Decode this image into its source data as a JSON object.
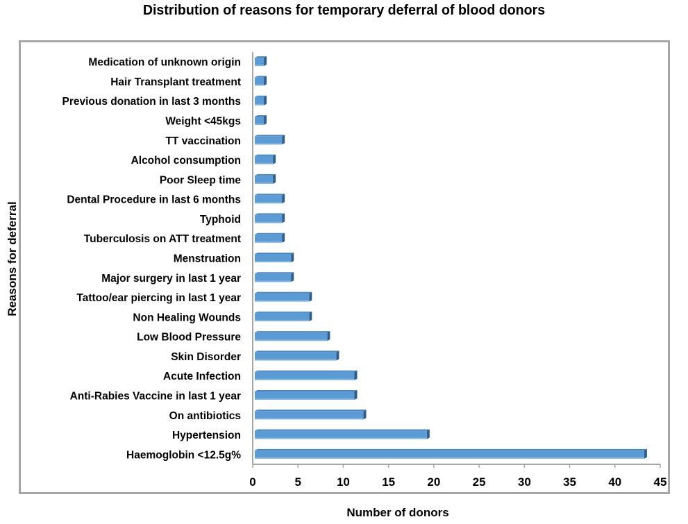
{
  "chart_data": {
    "type": "bar",
    "orientation": "horizontal",
    "title": "Distribution of reasons for temporary deferral of blood donors",
    "xlabel": "Number of donors",
    "ylabel": "Reasons for deferral",
    "xlim": [
      0,
      45
    ],
    "xticks": [
      0,
      5,
      10,
      15,
      20,
      25,
      30,
      35,
      40,
      45
    ],
    "grid": false,
    "legend": "none",
    "bar_color": "#5b9bd5",
    "categories": [
      "Medication of unknown origin",
      "Hair Transplant treatment",
      "Previous donation in last 3 months",
      "Weight <45kgs",
      "TT vaccination",
      "Alcohol consumption",
      "Poor Sleep time",
      "Dental Procedure in last 6  months",
      "Typhoid",
      "Tuberculosis on ATT treatment",
      "Menstruation",
      "Major surgery in last 1 year",
      "Tattoo/ear piercing in last 1 year",
      "Non Healing Wounds",
      "Low Blood Pressure",
      "Skin Disorder",
      "Acute Infection",
      "Anti-Rabies Vaccine in last 1 year",
      "On antibiotics",
      "Hypertension",
      "Haemoglobin <12.5g%"
    ],
    "values": [
      1,
      1,
      1,
      1,
      3,
      2,
      2,
      3,
      3,
      3,
      4,
      4,
      6,
      6,
      8,
      9,
      11,
      11,
      12,
      19,
      43
    ]
  }
}
